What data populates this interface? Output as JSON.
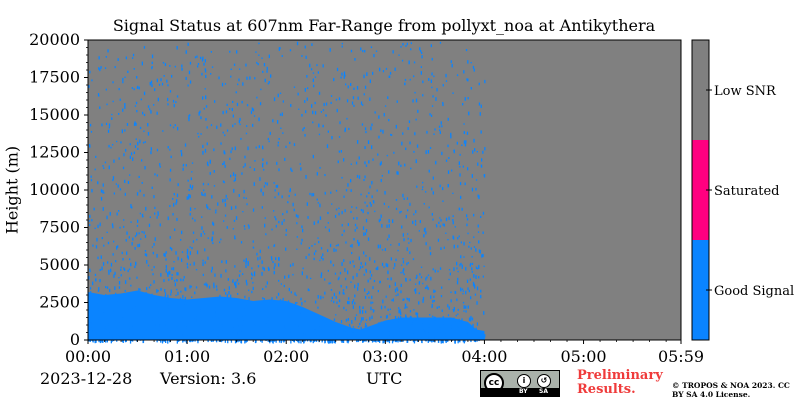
{
  "chart_data": {
    "type": "heatmap",
    "title": "Signal Status at 607nm Far-Range from pollyxt_noa at Antikythera",
    "ylabel": "Height (m)",
    "xlabel": "UTC",
    "xlim": [
      "00:00",
      "05:59"
    ],
    "ylim": [
      0,
      20000
    ],
    "x_ticks": [
      "00:00",
      "01:00",
      "02:00",
      "03:00",
      "04:00",
      "05:00",
      "05:59"
    ],
    "y_ticks": [
      "0",
      "2500",
      "5000",
      "7500",
      "10000",
      "12500",
      "15000",
      "17500",
      "20000"
    ],
    "categories": [
      "Good Signal",
      "Saturated",
      "Low SNR"
    ],
    "colors": {
      "Good Signal": "#0a84ff",
      "Saturated": "#ff0080",
      "Low SNR": "#808080"
    },
    "data_end_time": "04:00",
    "good_signal_top_profile": {
      "time": [
        "00:00",
        "00:10",
        "00:20",
        "00:30",
        "00:40",
        "00:50",
        "01:00",
        "01:10",
        "01:20",
        "01:30",
        "01:40",
        "01:50",
        "02:00",
        "02:10",
        "02:20",
        "02:30",
        "02:40",
        "02:45",
        "02:50",
        "03:00",
        "03:10",
        "03:20",
        "03:30",
        "03:40",
        "03:50",
        "03:55",
        "04:00"
      ],
      "height_m": [
        3200,
        3000,
        3100,
        3300,
        3000,
        2800,
        2700,
        2800,
        2900,
        2800,
        2600,
        2700,
        2600,
        2200,
        1700,
        1200,
        800,
        700,
        900,
        1300,
        1500,
        1500,
        1500,
        1500,
        1200,
        700,
        600
      ]
    }
  },
  "footer": {
    "date": "2023-12-28",
    "version": "Version: 3.6",
    "preliminary": "Preliminary Results.",
    "license": "© TROPOS & NOA 2023. CC BY SA 4.0 License.",
    "cc_mark": "cc",
    "cc_by": "BY",
    "cc_sa": "SA"
  }
}
